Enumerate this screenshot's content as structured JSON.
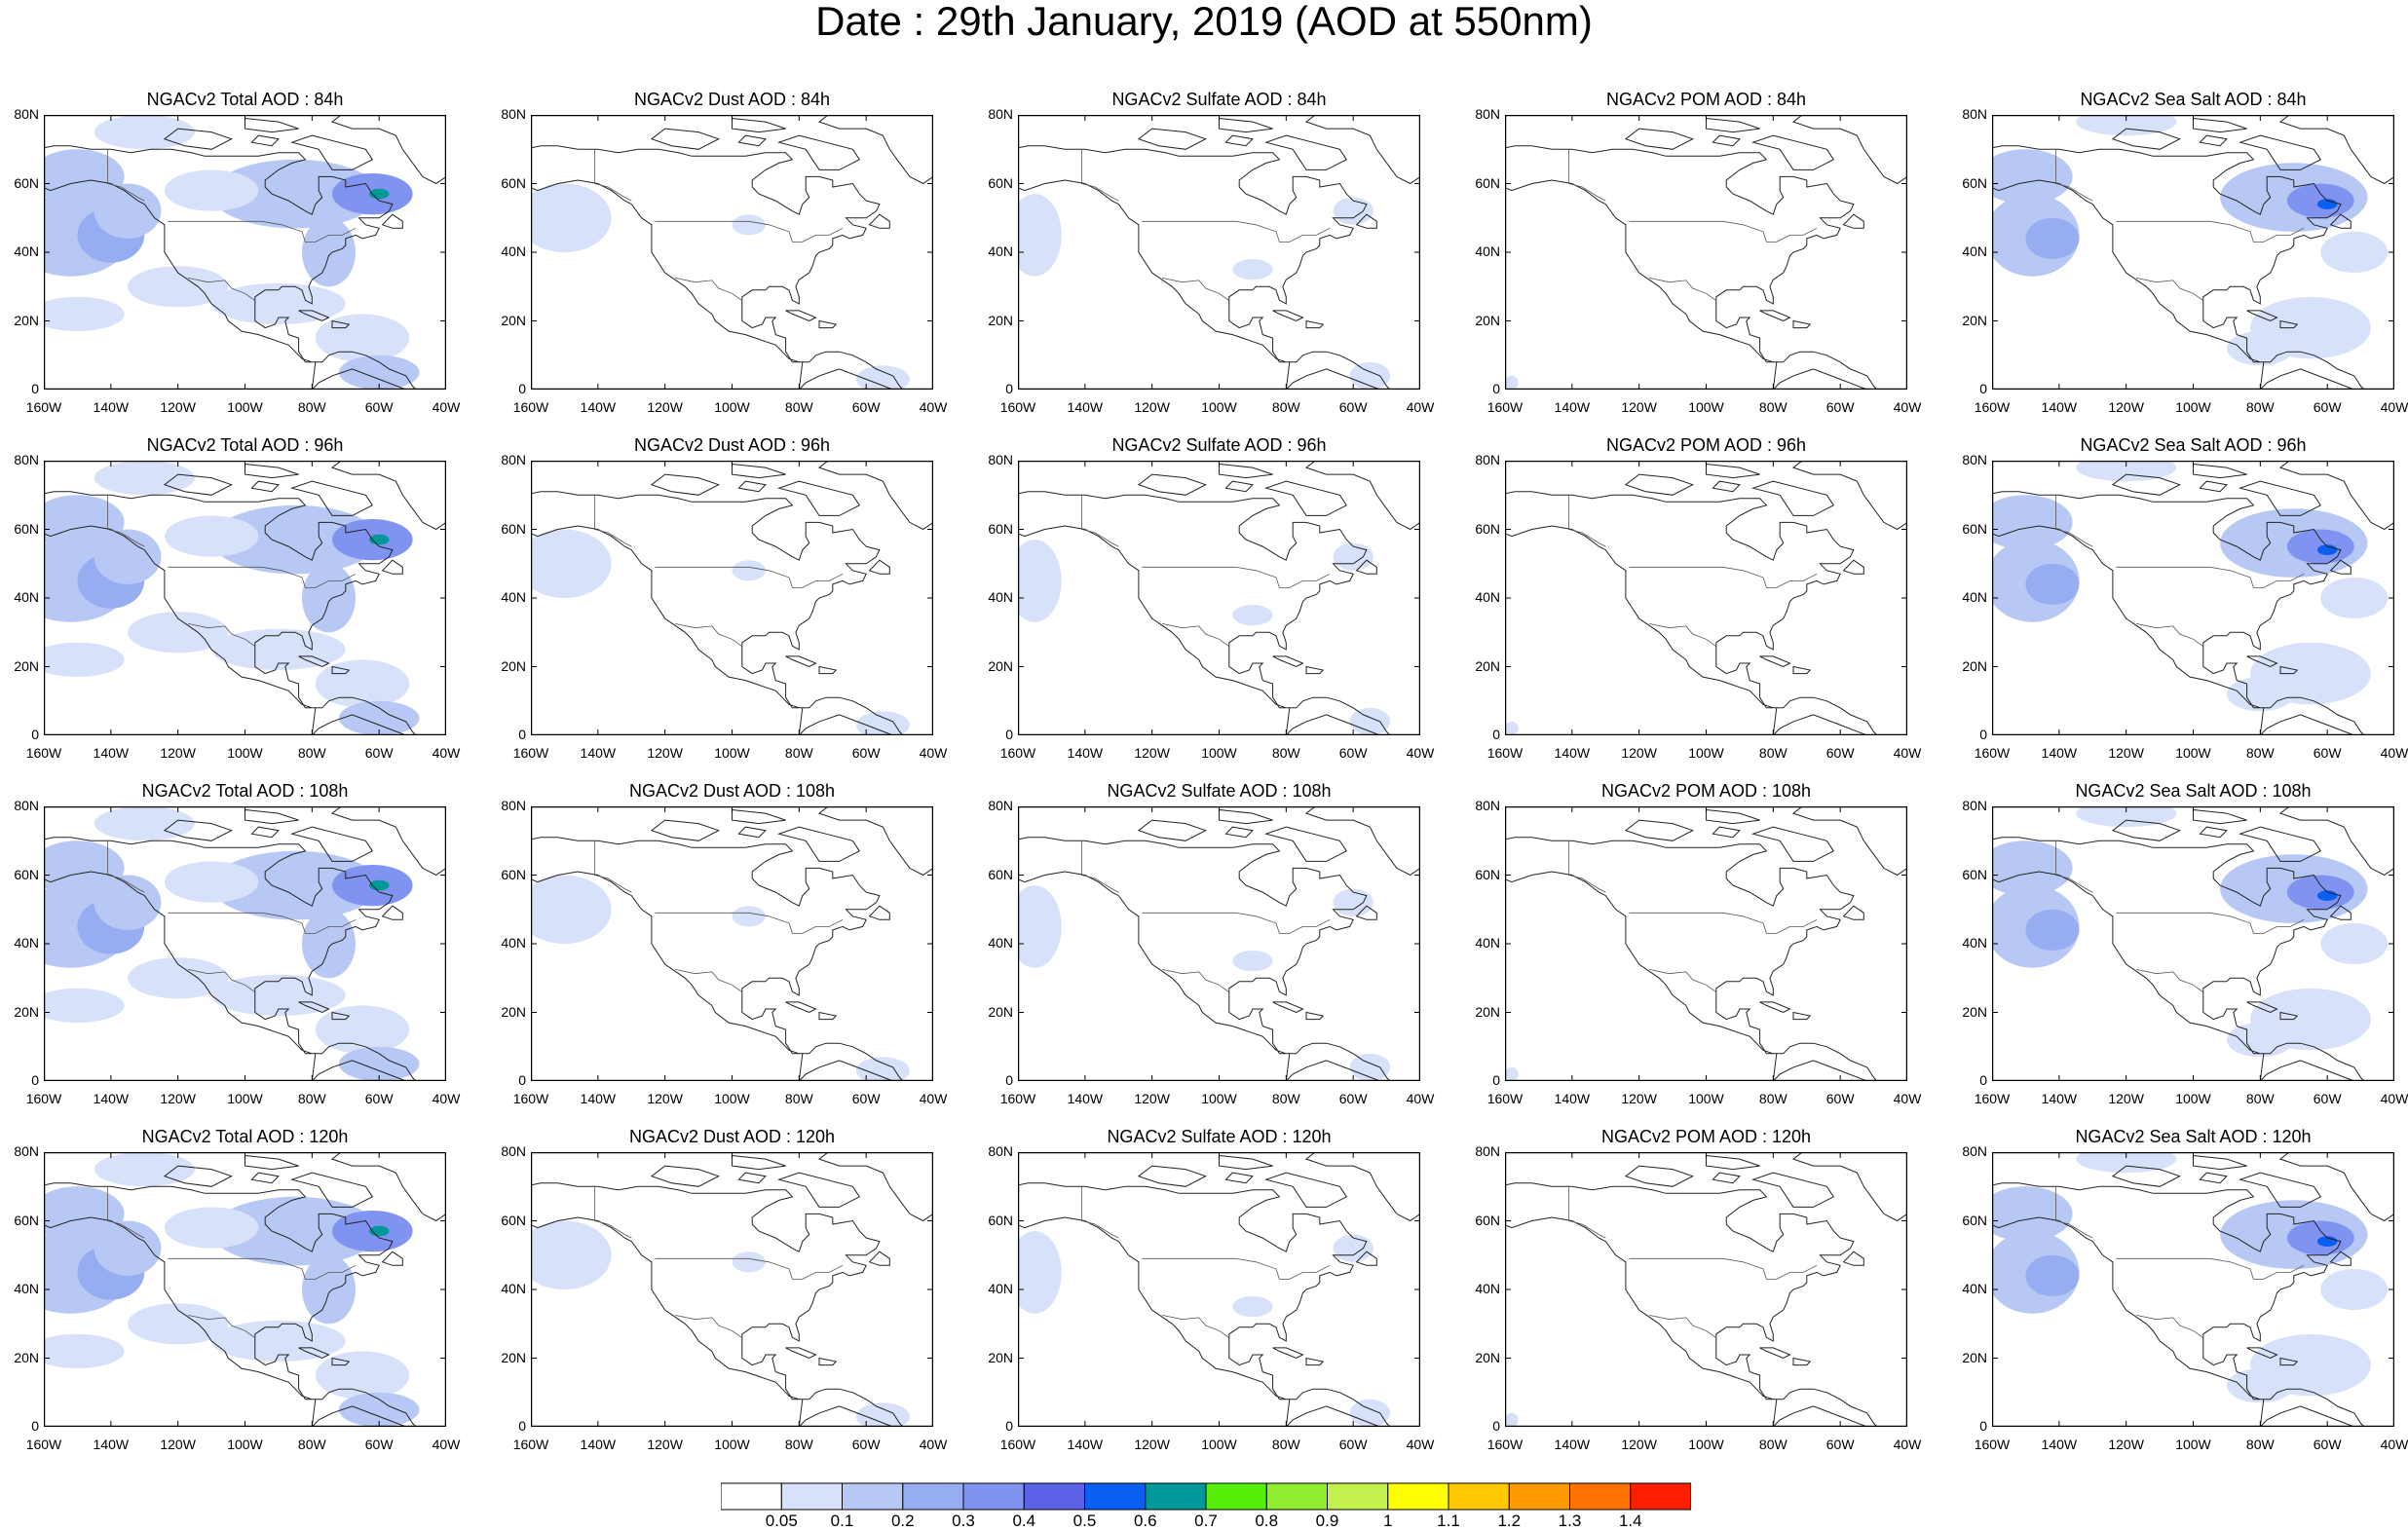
{
  "figure": {
    "title": "Date : 29th January, 2019 (AOD at 550nm)"
  },
  "panels": [
    {
      "title": "NGACv2 Total AOD : 84h",
      "species": "total",
      "forecast_hour": 84
    },
    {
      "title": "NGACv2 Dust AOD : 84h",
      "species": "dust",
      "forecast_hour": 84
    },
    {
      "title": "NGACv2 Sulfate AOD : 84h",
      "species": "sulfate",
      "forecast_hour": 84
    },
    {
      "title": "NGACv2 POM AOD : 84h",
      "species": "pom",
      "forecast_hour": 84
    },
    {
      "title": "NGACv2 Sea Salt AOD : 84h",
      "species": "seasalt",
      "forecast_hour": 84
    },
    {
      "title": "NGACv2 Total AOD : 96h",
      "species": "total",
      "forecast_hour": 96
    },
    {
      "title": "NGACv2 Dust AOD : 96h",
      "species": "dust",
      "forecast_hour": 96
    },
    {
      "title": "NGACv2 Sulfate AOD : 96h",
      "species": "sulfate",
      "forecast_hour": 96
    },
    {
      "title": "NGACv2 POM AOD : 96h",
      "species": "pom",
      "forecast_hour": 96
    },
    {
      "title": "NGACv2 Sea Salt AOD : 96h",
      "species": "seasalt",
      "forecast_hour": 96
    },
    {
      "title": "NGACv2 Total AOD : 108h",
      "species": "total",
      "forecast_hour": 108
    },
    {
      "title": "NGACv2 Dust AOD : 108h",
      "species": "dust",
      "forecast_hour": 108
    },
    {
      "title": "NGACv2 Sulfate AOD : 108h",
      "species": "sulfate",
      "forecast_hour": 108
    },
    {
      "title": "NGACv2 POM AOD : 108h",
      "species": "pom",
      "forecast_hour": 108
    },
    {
      "title": "NGACv2 Sea Salt AOD : 108h",
      "species": "seasalt",
      "forecast_hour": 108
    },
    {
      "title": "NGACv2 Total AOD : 120h",
      "species": "total",
      "forecast_hour": 120
    },
    {
      "title": "NGACv2 Dust AOD : 120h",
      "species": "dust",
      "forecast_hour": 120
    },
    {
      "title": "NGACv2 Sulfate AOD : 120h",
      "species": "sulfate",
      "forecast_hour": 120
    },
    {
      "title": "NGACv2 POM AOD : 120h",
      "species": "pom",
      "forecast_hour": 120
    },
    {
      "title": "NGACv2 Sea Salt  AOD : 120h",
      "species": "seasalt",
      "forecast_hour": 120
    }
  ],
  "axes": {
    "lat_labels": [
      "80N",
      "60N",
      "40N",
      "20N",
      "0"
    ],
    "lat_values": [
      80,
      60,
      40,
      20,
      0
    ],
    "lon_labels": [
      "160W",
      "140W",
      "120W",
      "100W",
      "80W",
      "60W",
      "40W"
    ],
    "lon_values": [
      -160,
      -140,
      -120,
      -100,
      -80,
      -60,
      -40
    ]
  },
  "colorbar": {
    "labels": [
      "0.05",
      "0.1",
      "0.2",
      "0.3",
      "0.4",
      "0.5",
      "0.6",
      "0.7",
      "0.8",
      "0.9",
      "1",
      "1.1",
      "1.2",
      "1.3",
      "1.4"
    ],
    "colors": [
      "#ffffff",
      "#d8e1fa",
      "#b8c8f5",
      "#96adf2",
      "#8093f0",
      "#5c62e6",
      "#0a5ef0",
      "#009898",
      "#55f00a",
      "#8fec2e",
      "#c3f04a",
      "#ffff00",
      "#ffc800",
      "#ff9a00",
      "#ff7200",
      "#ff1e00"
    ]
  },
  "colors": {
    "coast": "#222222",
    "frame": "#000000"
  }
}
